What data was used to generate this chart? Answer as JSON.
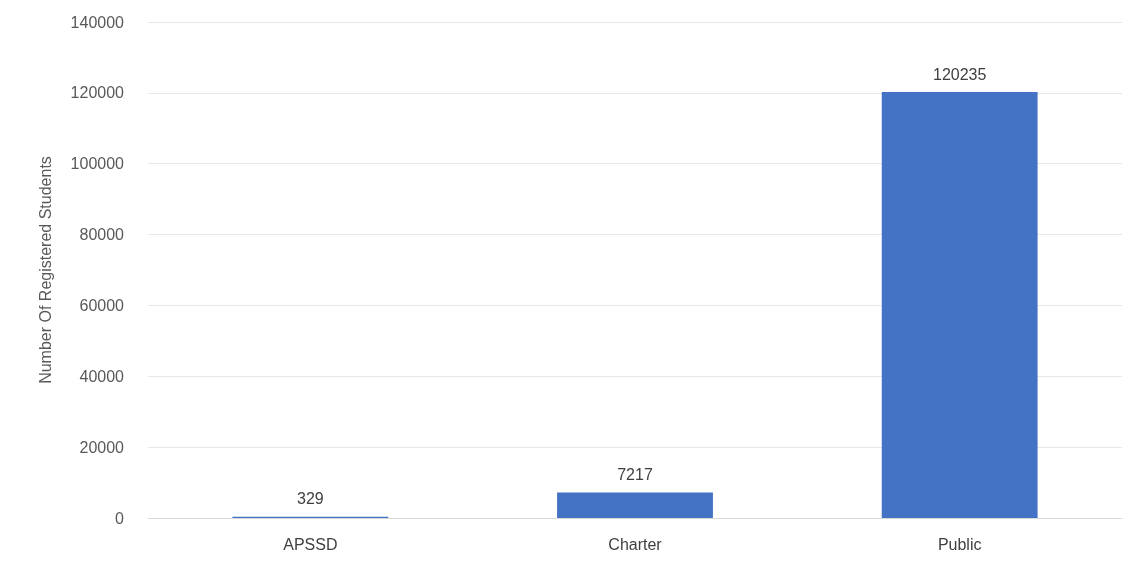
{
  "chart_data": {
    "type": "bar",
    "ylabel": "Number Of Registered Students",
    "categories": [
      "APSSD",
      "Charter",
      "Public"
    ],
    "values": [
      329,
      7217,
      120235
    ],
    "color": "#4472c4",
    "ylim": [
      0,
      140000
    ],
    "yticks": [
      0,
      20000,
      40000,
      60000,
      80000,
      100000,
      120000,
      140000
    ],
    "grid": "y",
    "data_labels": true
  }
}
